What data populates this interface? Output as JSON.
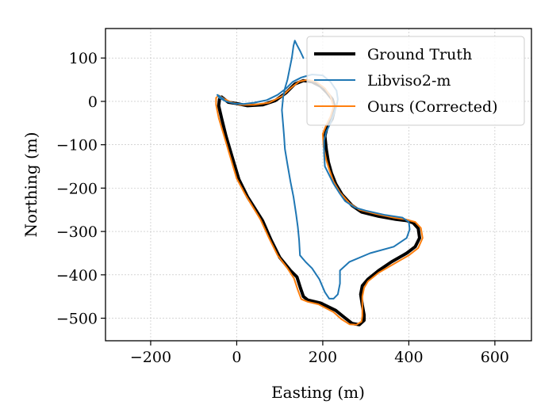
{
  "chart_data": {
    "type": "line",
    "xlabel": "Easting (m)",
    "ylabel": "Northing (m)",
    "xlim": [
      -305,
      685
    ],
    "ylim": [
      -552,
      168
    ],
    "xticks": [
      -200,
      0,
      200,
      400,
      600
    ],
    "yticks": [
      100,
      0,
      -100,
      -200,
      -300,
      -400,
      -500
    ],
    "grid": true,
    "legend_position": "upper right",
    "series": [
      {
        "name": "Ground Truth",
        "color": "#000000",
        "points": [
          [
            -40,
            5
          ],
          [
            -35,
            10
          ],
          [
            -20,
            -2
          ],
          [
            0,
            -5
          ],
          [
            25,
            -10
          ],
          [
            60,
            -8
          ],
          [
            90,
            2
          ],
          [
            115,
            20
          ],
          [
            135,
            40
          ],
          [
            155,
            48
          ],
          [
            175,
            45
          ],
          [
            195,
            35
          ],
          [
            210,
            20
          ],
          [
            222,
            5
          ],
          [
            228,
            -15
          ],
          [
            222,
            -40
          ],
          [
            210,
            -60
          ],
          [
            205,
            -80
          ],
          [
            208,
            -110
          ],
          [
            213,
            -140
          ],
          [
            220,
            -165
          ],
          [
            230,
            -190
          ],
          [
            245,
            -215
          ],
          [
            268,
            -240
          ],
          [
            290,
            -255
          ],
          [
            330,
            -265
          ],
          [
            370,
            -272
          ],
          [
            395,
            -275
          ],
          [
            410,
            -280
          ],
          [
            422,
            -293
          ],
          [
            425,
            -315
          ],
          [
            415,
            -335
          ],
          [
            395,
            -350
          ],
          [
            360,
            -370
          ],
          [
            330,
            -390
          ],
          [
            305,
            -410
          ],
          [
            292,
            -425
          ],
          [
            288,
            -445
          ],
          [
            292,
            -470
          ],
          [
            296,
            -492
          ],
          [
            296,
            -505
          ],
          [
            285,
            -515
          ],
          [
            268,
            -512
          ],
          [
            250,
            -498
          ],
          [
            230,
            -482
          ],
          [
            195,
            -465
          ],
          [
            165,
            -458
          ],
          [
            155,
            -450
          ],
          [
            148,
            -430
          ],
          [
            140,
            -405
          ],
          [
            125,
            -390
          ],
          [
            100,
            -360
          ],
          [
            80,
            -320
          ],
          [
            60,
            -275
          ],
          [
            25,
            -220
          ],
          [
            5,
            -180
          ],
          [
            -10,
            -130
          ],
          [
            -25,
            -80
          ],
          [
            -35,
            -40
          ],
          [
            -42,
            -10
          ],
          [
            -40,
            5
          ]
        ]
      },
      {
        "name": "Libviso2-m",
        "color": "#1f77b4",
        "points": [
          [
            155,
            100
          ],
          [
            148,
            115
          ],
          [
            140,
            130
          ],
          [
            135,
            140
          ],
          [
            132,
            128
          ],
          [
            128,
            100
          ],
          [
            122,
            70
          ],
          [
            118,
            50
          ],
          [
            112,
            30
          ],
          [
            108,
            10
          ],
          [
            105,
            -20
          ],
          [
            108,
            -55
          ],
          [
            110,
            -80
          ],
          [
            112,
            -110
          ],
          [
            118,
            -145
          ],
          [
            125,
            -185
          ],
          [
            132,
            -220
          ],
          [
            138,
            -260
          ],
          [
            142,
            -290
          ],
          [
            145,
            -320
          ],
          [
            147,
            -355
          ],
          [
            160,
            -370
          ],
          [
            175,
            -385
          ],
          [
            192,
            -410
          ],
          [
            205,
            -440
          ],
          [
            215,
            -455
          ],
          [
            225,
            -455
          ],
          [
            235,
            -445
          ],
          [
            240,
            -420
          ],
          [
            240,
            -390
          ],
          [
            262,
            -370
          ],
          [
            310,
            -350
          ],
          [
            365,
            -335
          ],
          [
            395,
            -315
          ],
          [
            402,
            -295
          ],
          [
            400,
            -278
          ],
          [
            385,
            -268
          ],
          [
            345,
            -262
          ],
          [
            300,
            -252
          ],
          [
            275,
            -245
          ],
          [
            252,
            -230
          ],
          [
            238,
            -210
          ],
          [
            225,
            -190
          ],
          [
            215,
            -170
          ],
          [
            205,
            -150
          ],
          [
            203,
            -120
          ],
          [
            203,
            -90
          ],
          [
            208,
            -70
          ],
          [
            218,
            -50
          ],
          [
            225,
            -30
          ],
          [
            232,
            -10
          ],
          [
            235,
            5
          ],
          [
            232,
            25
          ],
          [
            218,
            45
          ],
          [
            200,
            60
          ],
          [
            175,
            62
          ],
          [
            150,
            55
          ],
          [
            130,
            45
          ],
          [
            115,
            30
          ],
          [
            95,
            15
          ],
          [
            70,
            3
          ],
          [
            40,
            -3
          ],
          [
            15,
            -6
          ],
          [
            -5,
            -5
          ],
          [
            -25,
            0
          ],
          [
            -40,
            8
          ],
          [
            -45,
            15
          ],
          [
            -40,
            12
          ],
          [
            -30,
            5
          ]
        ]
      },
      {
        "name": "Ours (Corrected)",
        "color": "#ff7f0e",
        "points": [
          [
            -48,
            8
          ],
          [
            -42,
            14
          ],
          [
            -28,
            5
          ],
          [
            -10,
            -3
          ],
          [
            10,
            -8
          ],
          [
            40,
            -8
          ],
          [
            75,
            -3
          ],
          [
            105,
            12
          ],
          [
            125,
            30
          ],
          [
            145,
            46
          ],
          [
            165,
            50
          ],
          [
            185,
            45
          ],
          [
            205,
            30
          ],
          [
            218,
            12
          ],
          [
            225,
            -12
          ],
          [
            218,
            -35
          ],
          [
            208,
            -55
          ],
          [
            200,
            -75
          ],
          [
            202,
            -105
          ],
          [
            208,
            -135
          ],
          [
            216,
            -160
          ],
          [
            225,
            -185
          ],
          [
            240,
            -210
          ],
          [
            262,
            -235
          ],
          [
            285,
            -250
          ],
          [
            325,
            -260
          ],
          [
            365,
            -268
          ],
          [
            392,
            -272
          ],
          [
            415,
            -278
          ],
          [
            428,
            -292
          ],
          [
            432,
            -315
          ],
          [
            422,
            -338
          ],
          [
            400,
            -355
          ],
          [
            365,
            -375
          ],
          [
            330,
            -395
          ],
          [
            305,
            -415
          ],
          [
            296,
            -430
          ],
          [
            292,
            -450
          ],
          [
            292,
            -475
          ],
          [
            292,
            -495
          ],
          [
            290,
            -508
          ],
          [
            278,
            -515
          ],
          [
            262,
            -514
          ],
          [
            243,
            -502
          ],
          [
            225,
            -486
          ],
          [
            190,
            -468
          ],
          [
            165,
            -462
          ],
          [
            150,
            -456
          ],
          [
            142,
            -435
          ],
          [
            133,
            -408
          ],
          [
            118,
            -385
          ],
          [
            95,
            -355
          ],
          [
            75,
            -315
          ],
          [
            55,
            -272
          ],
          [
            20,
            -215
          ],
          [
            0,
            -178
          ],
          [
            -15,
            -128
          ],
          [
            -30,
            -78
          ],
          [
            -42,
            -38
          ],
          [
            -48,
            -8
          ],
          [
            -48,
            8
          ]
        ]
      }
    ]
  },
  "legend": {
    "entries": [
      "Ground Truth",
      "Libviso2-m",
      "Ours (Corrected)"
    ]
  }
}
